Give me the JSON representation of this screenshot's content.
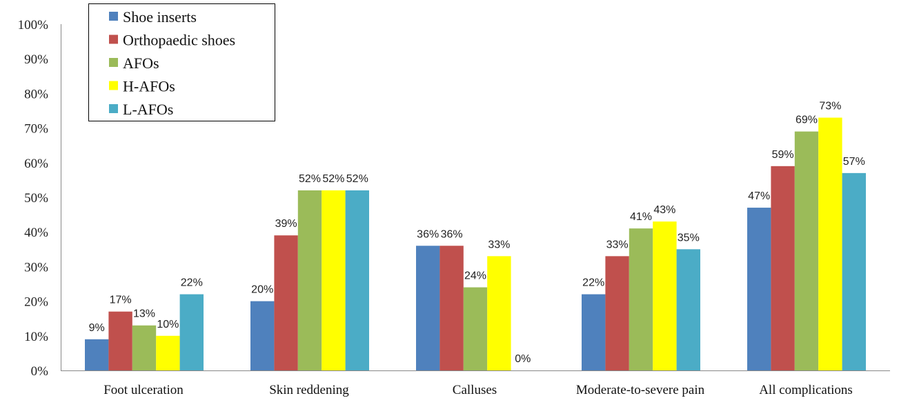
{
  "chart_data": {
    "type": "bar",
    "title": "",
    "xlabel": "",
    "ylabel": "",
    "ylim": [
      0,
      100
    ],
    "y_ticks": [
      "0%",
      "10%",
      "20%",
      "30%",
      "40%",
      "50%",
      "60%",
      "70%",
      "80%",
      "90%",
      "100%"
    ],
    "categories": [
      "Foot ulceration",
      "Skin reddening",
      "Calluses",
      "Moderate-to-severe pain",
      "All complications"
    ],
    "series": [
      {
        "name": "Shoe inserts",
        "color": "#4F81BD",
        "values": [
          9,
          20,
          36,
          22,
          47
        ]
      },
      {
        "name": "Orthopaedic shoes",
        "color": "#C0504D",
        "values": [
          17,
          39,
          36,
          33,
          59
        ]
      },
      {
        "name": "AFOs",
        "color": "#9BBB59",
        "values": [
          13,
          52,
          24,
          41,
          69
        ]
      },
      {
        "name": "H-AFOs",
        "color": "#FFFF00",
        "values": [
          10,
          52,
          33,
          43,
          73
        ]
      },
      {
        "name": "L-AFOs",
        "color": "#4BACC6",
        "values": [
          22,
          52,
          0,
          35,
          57
        ]
      }
    ],
    "legend_position": "top-left",
    "grid": false
  }
}
